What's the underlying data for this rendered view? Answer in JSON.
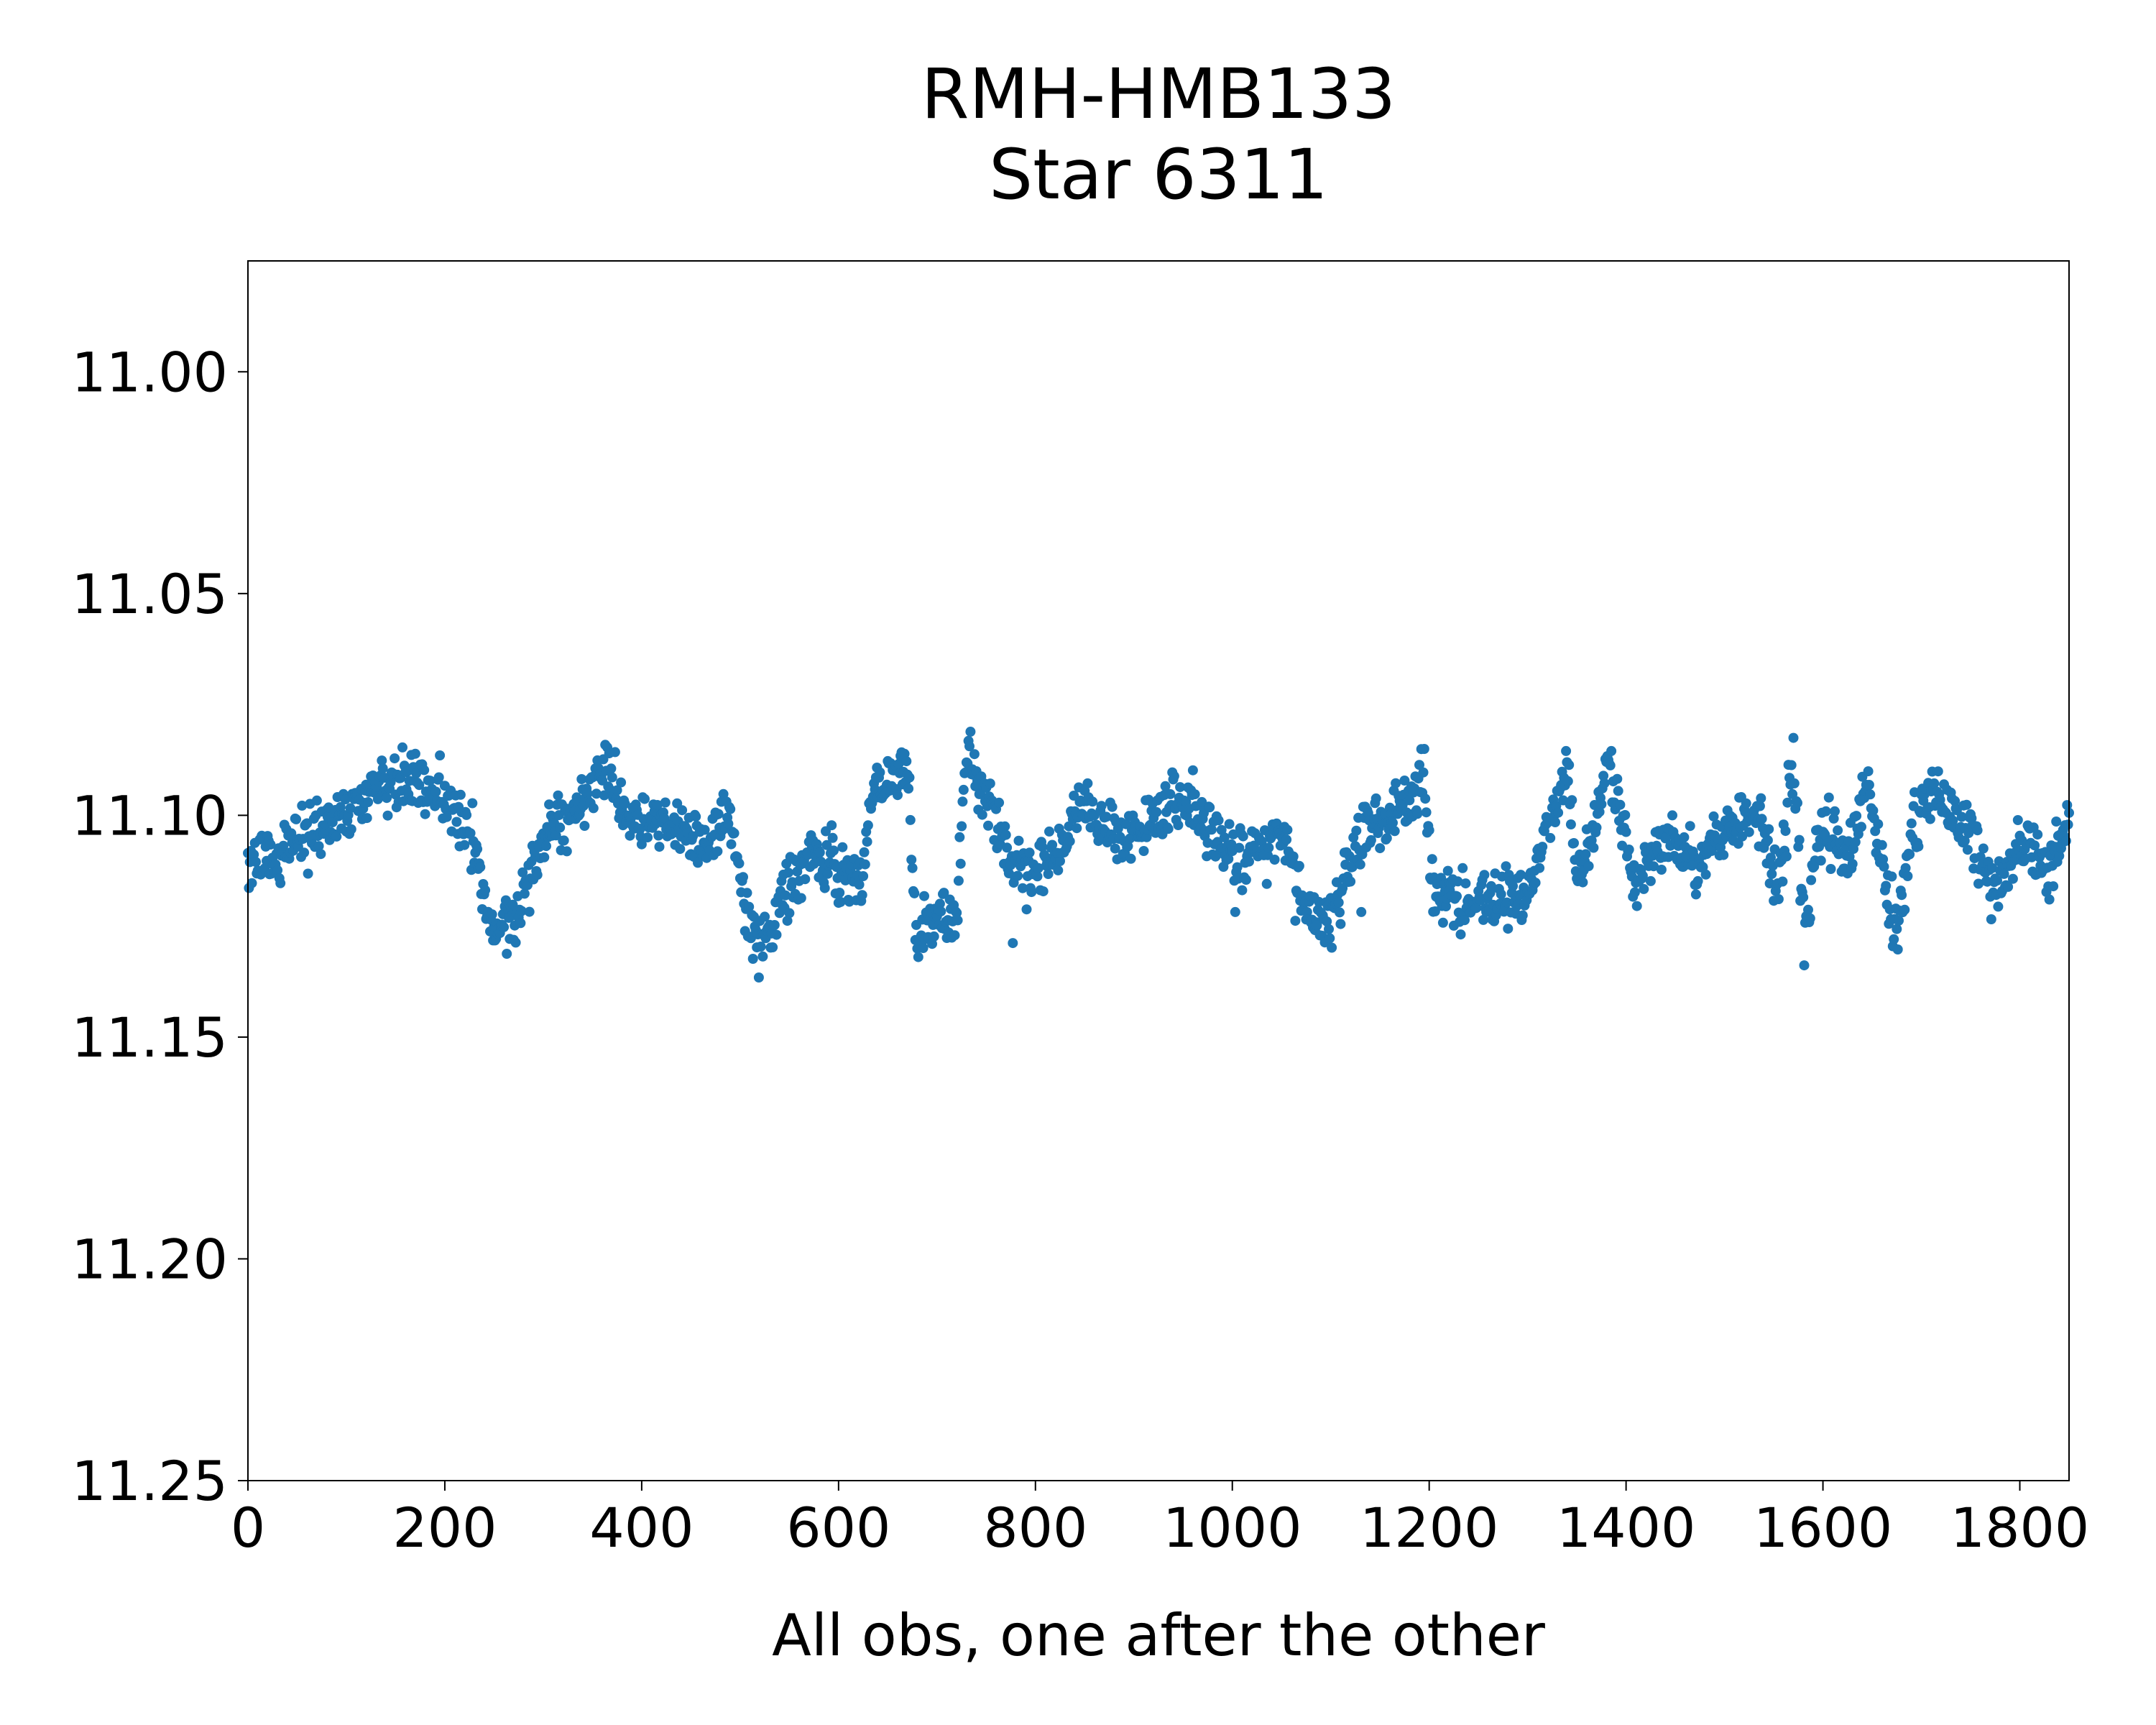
{
  "chart_data": {
    "type": "scatter",
    "title": "RMH-HMB133",
    "subtitle": "Star 6311",
    "xlabel": "All obs, one after the other",
    "ylabel": "",
    "xlim": [
      0,
      1850
    ],
    "ylim": [
      11.25,
      10.975
    ],
    "y_inverted": true,
    "grid": false,
    "legend": "none",
    "marker_color": "#1f77b4",
    "x_ticks": [
      0,
      200,
      400,
      600,
      800,
      1000,
      1200,
      1400,
      1600,
      1800
    ],
    "x_tick_labels": [
      "0",
      "200",
      "400",
      "600",
      "800",
      "1000",
      "1200",
      "1400",
      "1600",
      "1800"
    ],
    "y_ticks": [
      11.0,
      11.05,
      11.1,
      11.15,
      11.2,
      11.25
    ],
    "y_tick_labels": [
      "11.00",
      "11.05",
      "11.10",
      "11.15",
      "11.20",
      "11.25"
    ],
    "trend_points": [
      [
        0,
        11.113
      ],
      [
        40,
        11.107
      ],
      [
        60,
        11.102
      ],
      [
        100,
        11.101
      ],
      [
        130,
        11.092
      ],
      [
        150,
        11.093
      ],
      [
        185,
        11.092
      ],
      [
        205,
        11.097
      ],
      [
        230,
        11.106
      ],
      [
        245,
        11.125
      ],
      [
        270,
        11.126
      ],
      [
        285,
        11.115
      ],
      [
        310,
        11.102
      ],
      [
        340,
        11.099
      ],
      [
        365,
        11.088
      ],
      [
        380,
        11.098
      ],
      [
        400,
        11.103
      ],
      [
        430,
        11.1
      ],
      [
        450,
        11.105
      ],
      [
        475,
        11.104
      ],
      [
        490,
        11.098
      ],
      [
        505,
        11.122
      ],
      [
        520,
        11.131
      ],
      [
        545,
        11.118
      ],
      [
        575,
        11.108
      ],
      [
        600,
        11.112
      ],
      [
        625,
        11.115
      ],
      [
        630,
        11.098
      ],
      [
        650,
        11.092
      ],
      [
        672,
        11.09
      ],
      [
        678,
        11.128
      ],
      [
        700,
        11.123
      ],
      [
        720,
        11.124
      ],
      [
        730,
        11.086
      ],
      [
        755,
        11.1
      ],
      [
        775,
        11.112
      ],
      [
        800,
        11.113
      ],
      [
        820,
        11.11
      ],
      [
        845,
        11.098
      ],
      [
        865,
        11.102
      ],
      [
        890,
        11.105
      ],
      [
        915,
        11.101
      ],
      [
        940,
        11.097
      ],
      [
        960,
        11.098
      ],
      [
        985,
        11.106
      ],
      [
        1010,
        11.11
      ],
      [
        1035,
        11.106
      ],
      [
        1055,
        11.105
      ],
      [
        1075,
        11.122
      ],
      [
        1100,
        11.124
      ],
      [
        1125,
        11.105
      ],
      [
        1150,
        11.101
      ],
      [
        1175,
        11.097
      ],
      [
        1195,
        11.093
      ],
      [
        1205,
        11.117
      ],
      [
        1240,
        11.12
      ],
      [
        1270,
        11.118
      ],
      [
        1300,
        11.119
      ],
      [
        1320,
        11.104
      ],
      [
        1340,
        11.09
      ],
      [
        1350,
        11.114
      ],
      [
        1370,
        11.101
      ],
      [
        1380,
        11.087
      ],
      [
        1395,
        11.1
      ],
      [
        1410,
        11.117
      ],
      [
        1430,
        11.108
      ],
      [
        1445,
        11.105
      ],
      [
        1470,
        11.112
      ],
      [
        1500,
        11.104
      ],
      [
        1530,
        11.098
      ],
      [
        1555,
        11.115
      ],
      [
        1570,
        11.088
      ],
      [
        1580,
        11.124
      ],
      [
        1600,
        11.103
      ],
      [
        1625,
        11.109
      ],
      [
        1645,
        11.093
      ],
      [
        1660,
        11.112
      ],
      [
        1675,
        11.128
      ],
      [
        1690,
        11.103
      ],
      [
        1710,
        11.093
      ],
      [
        1730,
        11.098
      ],
      [
        1750,
        11.103
      ],
      [
        1770,
        11.118
      ],
      [
        1790,
        11.111
      ],
      [
        1810,
        11.106
      ],
      [
        1830,
        11.113
      ],
      [
        1850,
        11.1
      ]
    ]
  }
}
